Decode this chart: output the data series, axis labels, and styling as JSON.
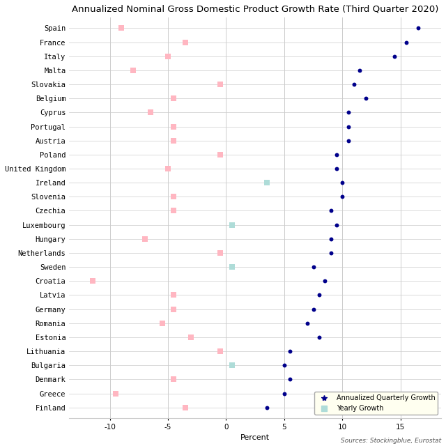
{
  "title": "Annualized Nominal Gross Domestic Product Growth Rate (Third Quarter 2020)",
  "xlabel": "Percent",
  "source": "Sources: Stockingblue, Eurostat",
  "countries": [
    "Spain",
    "France",
    "Italy",
    "Malta",
    "Slovakia",
    "Belgium",
    "Cyprus",
    "Portugal",
    "Austria",
    "Poland",
    "United Kingdom",
    "Ireland",
    "Slovenia",
    "Czechia",
    "Luxembourg",
    "Hungary",
    "Netherlands",
    "Sweden",
    "Croatia",
    "Latvia",
    "Germany",
    "Romania",
    "Estonia",
    "Lithuania",
    "Bulgaria",
    "Denmark",
    "Greece",
    "Finland"
  ],
  "annualized_quarterly": [
    16.5,
    15.5,
    14.5,
    11.5,
    11.0,
    12.0,
    10.5,
    10.5,
    10.5,
    9.5,
    9.5,
    10.0,
    10.0,
    9.0,
    9.5,
    9.0,
    9.0,
    7.5,
    8.5,
    8.0,
    7.5,
    7.0,
    8.0,
    5.5,
    5.0,
    5.5,
    5.0,
    3.5
  ],
  "yearly": [
    -9.0,
    -3.5,
    -5.0,
    -8.0,
    -0.5,
    -4.5,
    -6.5,
    -4.5,
    -4.5,
    -0.5,
    -5.0,
    3.5,
    -4.5,
    -4.5,
    0.5,
    -7.0,
    -0.5,
    0.5,
    -11.5,
    -4.5,
    -4.5,
    -5.5,
    -3.0,
    -0.5,
    0.5,
    -4.5,
    -9.5,
    -3.5
  ],
  "xlim": [
    -13.5,
    18.5
  ],
  "xticks": [
    -10,
    -5,
    0,
    5,
    10,
    15
  ],
  "dot_color": "#00008B",
  "yearly_pos_color": "#AEDCD8",
  "yearly_neg_color": "#FFB6C1",
  "background_color": "#FFFFFF",
  "grid_color": "#CCCCCC",
  "title_fontsize": 9.5,
  "label_fontsize": 8,
  "tick_fontsize": 7.5,
  "marker_dot_size": 18,
  "marker_sq_size": 40
}
